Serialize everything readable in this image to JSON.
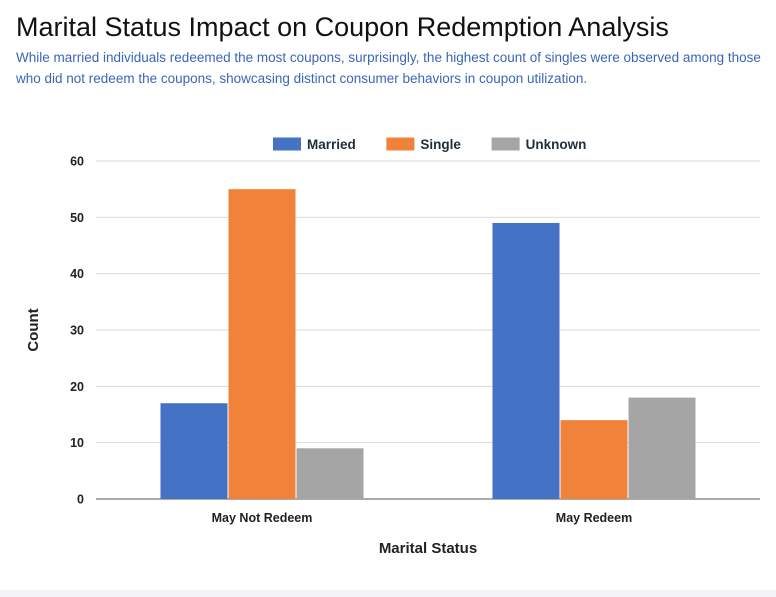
{
  "title": "Marital Status Impact on Coupon Redemption Analysis",
  "subtitle": "While married individuals redeemed the most coupons, surprisingly, the highest count of singles were observed among those who did not redeem the coupons, showcasing distinct consumer behaviors in coupon utilization.",
  "chart_data": {
    "type": "bar",
    "title": "Marital Status Impact on Coupon Redemption Analysis",
    "subtitle": "While married individuals redeemed the most coupons, surprisingly, the highest count of singles were observed among those who did not redeem the coupons, showcasing distinct consumer behaviors in coupon utilization.",
    "xlabel": "Marital Status",
    "ylabel": "Count",
    "categories": [
      "May Not Redeem",
      "May Redeem"
    ],
    "series": [
      {
        "name": "Married",
        "color": "#4472c4",
        "values": [
          17,
          49
        ]
      },
      {
        "name": "Single",
        "color": "#f1823a",
        "values": [
          55,
          14
        ]
      },
      {
        "name": "Unknown",
        "color": "#a5a5a5",
        "values": [
          9,
          18
        ]
      }
    ],
    "ylim": [
      0,
      60
    ],
    "yticks": [
      0,
      10,
      20,
      30,
      40,
      50,
      60
    ],
    "grid": true,
    "legend_position": "top"
  }
}
